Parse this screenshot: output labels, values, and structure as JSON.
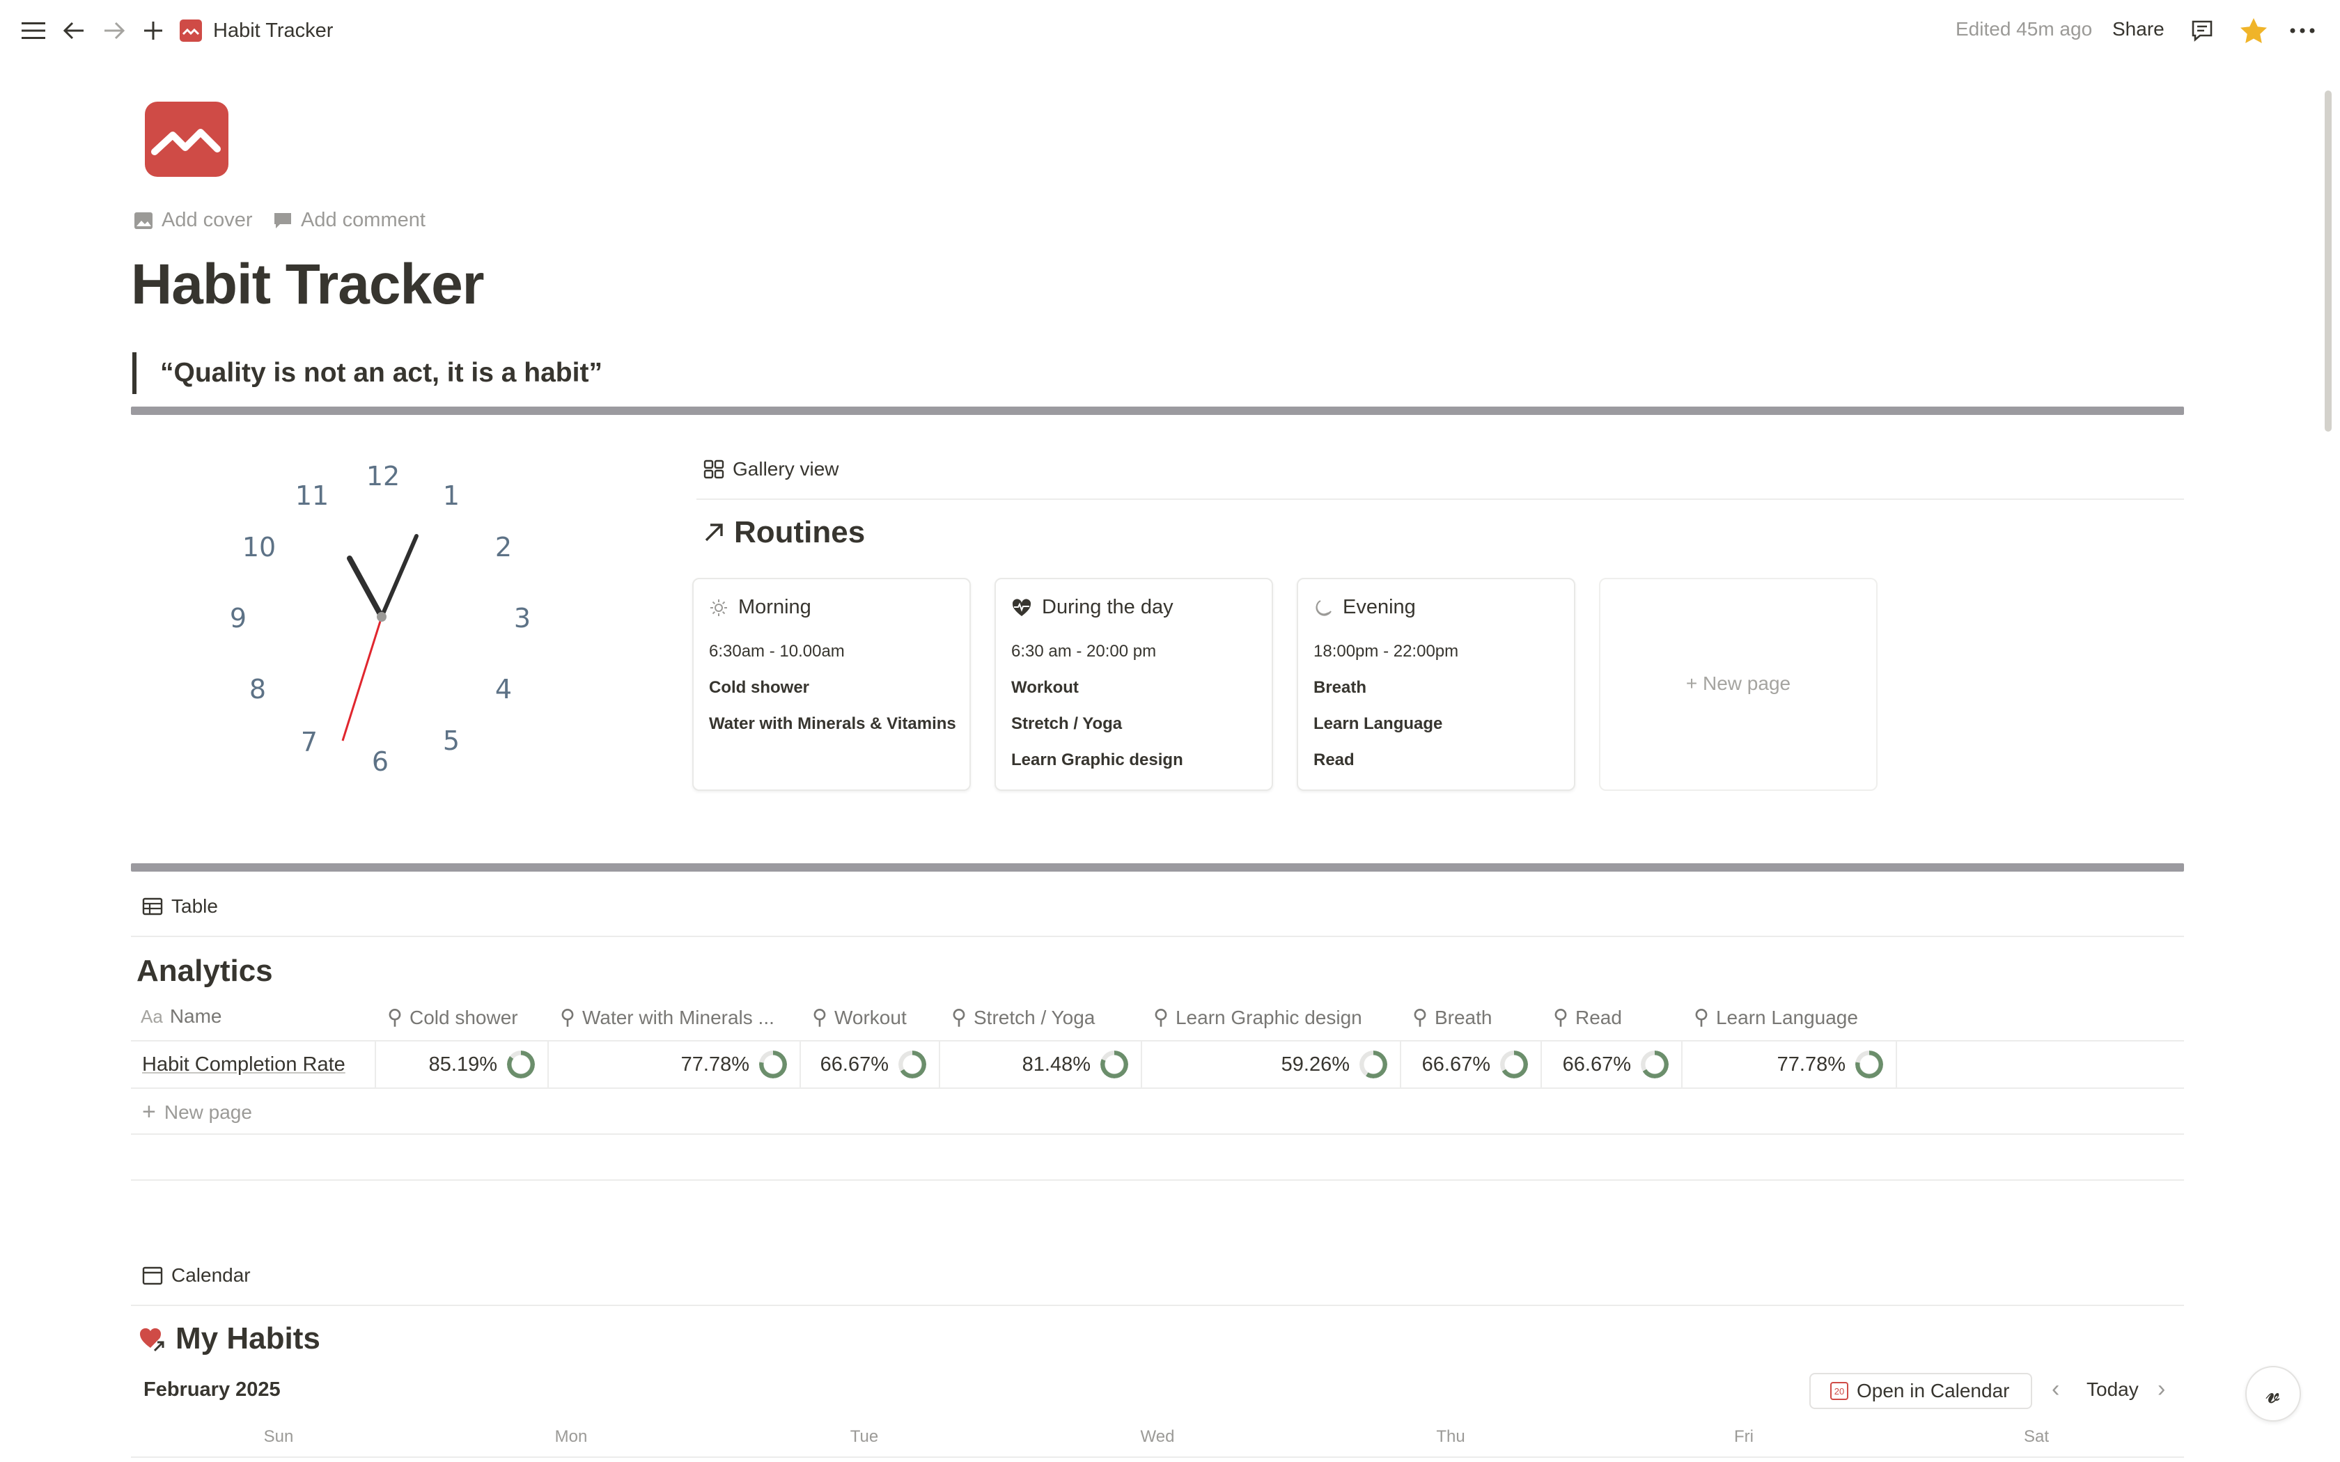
{
  "topbar": {
    "breadcrumb_title": "Habit Tracker",
    "edited": "Edited 45m ago",
    "share": "Share",
    "icons": [
      "menu-icon",
      "back-arrow-icon",
      "forward-arrow-icon",
      "plus-icon",
      "page-icon",
      "comment-icon",
      "star-icon",
      "more-icon"
    ]
  },
  "page": {
    "add_cover": "Add cover",
    "add_comment": "Add comment",
    "title": "Habit Tracker",
    "quote": "“Quality is not an act, it is a habit”",
    "accent": "#cf4b46"
  },
  "clock": {
    "numbers": [
      "12",
      "1",
      "2",
      "3",
      "4",
      "5",
      "6",
      "7",
      "8",
      "9",
      "10",
      "11"
    ]
  },
  "routines": {
    "view_label": "Gallery view",
    "title": "Routines",
    "cards": [
      {
        "title": "Morning",
        "icon": "sun-icon",
        "lines": [
          "6:30am - 10.00am",
          "Cold shower",
          "Water with Minerals & Vitamins"
        ]
      },
      {
        "title": "During the day",
        "icon": "heartbeat-icon",
        "lines": [
          "6:30 am - 20:00 pm",
          "Workout",
          "Stretch / Yoga",
          "Learn Graphic design"
        ]
      },
      {
        "title": "Evening",
        "icon": "moon-icon",
        "lines": [
          "18:00pm - 22:00pm",
          "Breath",
          "Learn Language",
          "Read"
        ]
      }
    ],
    "new_page": "New page"
  },
  "analytics": {
    "view_label": "Table",
    "title": "Analytics",
    "columns": [
      "Name",
      "Cold shower",
      "Water with Minerals ...",
      "Workout",
      "Stretch / Yoga",
      "Learn Graphic design",
      "Breath",
      "Read",
      "Learn Language"
    ],
    "row": {
      "name": "Habit Completion Rate",
      "values": [
        "85.19%",
        "77.78%",
        "66.67%",
        "81.48%",
        "59.26%",
        "66.67%",
        "66.67%",
        "77.78%"
      ],
      "fractions": [
        0.8519,
        0.7778,
        0.6667,
        0.8148,
        0.5926,
        0.6667,
        0.6667,
        0.7778
      ]
    },
    "new_page": "New page",
    "ring_color": "#6b8e6b"
  },
  "calendar": {
    "view_label": "Calendar",
    "title": "My Habits",
    "month": "February 2025",
    "open_button": "Open in Calendar",
    "open_button_icon": "20",
    "today": "Today",
    "days": [
      "Sun",
      "Mon",
      "Tue",
      "Wed",
      "Thu",
      "Fri",
      "Sat"
    ]
  }
}
